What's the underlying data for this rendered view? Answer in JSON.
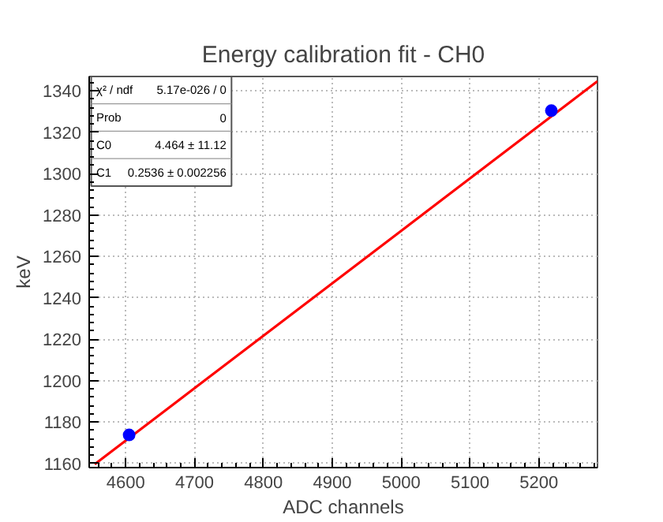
{
  "chart_data": {
    "type": "scatter",
    "title": "Energy calibration fit - CH0",
    "xlabel": "ADC channels",
    "ylabel": "keV",
    "x": [
      4605,
      5218
    ],
    "series": [
      {
        "color": "#0000ff",
        "values": [
          1173.8,
          1330.5
        ]
      },
      {
        "type": "line",
        "marker": "none",
        "color": "#ff0000",
        "x": [
          4555,
          5285
        ],
        "values": [
          1159.6,
          1344.7
        ]
      }
    ],
    "xlim": [
      4547,
      5285
    ],
    "ylim": [
      1158,
      1347
    ],
    "xticks": [
      4600,
      4700,
      4800,
      4900,
      5000,
      5100,
      5200
    ],
    "yticks": [
      1160,
      1180,
      1200,
      1220,
      1240,
      1260,
      1280,
      1300,
      1320,
      1340
    ],
    "grid": true,
    "marker": "circle",
    "line_style": "solid",
    "annotations": [
      "χ² / ndf",
      "5.17e-026 / 0",
      "Prob",
      "0",
      "C0",
      "4.464 ± 11.12",
      "C1",
      "0.2536 ± 0.002256"
    ]
  }
}
